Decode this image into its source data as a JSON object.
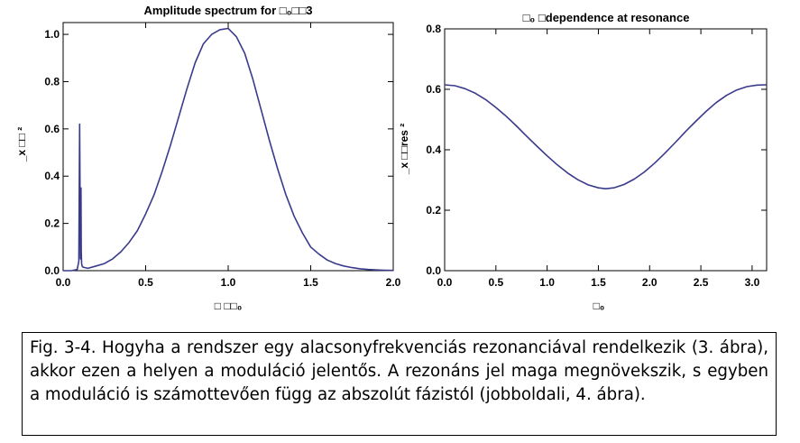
{
  "chart_data": [
    {
      "type": "line",
      "title": "Amplitude spectrum for □₀□□3",
      "xlabel": "□ □□₀",
      "ylabel": "_x □□ ²",
      "xlim": [
        0.0,
        2.0
      ],
      "ylim": [
        0.0,
        1.05
      ],
      "xticks": [
        "0.0",
        "0.5",
        "1.0",
        "1.5",
        "2.0"
      ],
      "yticks": [
        "0.0",
        "0.2",
        "0.4",
        "0.6",
        "0.8",
        "1.0"
      ],
      "series": [
        {
          "color": "#3a3a8c",
          "x": [
            0.0,
            0.05,
            0.085,
            0.095,
            0.1,
            0.105,
            0.108,
            0.11,
            0.112,
            0.115,
            0.12,
            0.15,
            0.2,
            0.25,
            0.3,
            0.35,
            0.4,
            0.45,
            0.5,
            0.55,
            0.6,
            0.65,
            0.7,
            0.75,
            0.8,
            0.85,
            0.9,
            0.95,
            1.0,
            1.05,
            1.1,
            1.15,
            1.2,
            1.25,
            1.3,
            1.35,
            1.4,
            1.45,
            1.5,
            1.55,
            1.6,
            1.65,
            1.7,
            1.75,
            1.8,
            1.85,
            1.9,
            1.95,
            2.0
          ],
          "y": [
            0.0,
            0.0,
            0.005,
            0.04,
            0.62,
            0.05,
            0.35,
            0.08,
            0.03,
            0.02,
            0.015,
            0.01,
            0.02,
            0.03,
            0.05,
            0.08,
            0.12,
            0.17,
            0.24,
            0.32,
            0.42,
            0.53,
            0.65,
            0.77,
            0.88,
            0.96,
            1.0,
            1.02,
            1.025,
            0.99,
            0.92,
            0.81,
            0.68,
            0.55,
            0.43,
            0.32,
            0.23,
            0.16,
            0.1,
            0.07,
            0.045,
            0.03,
            0.02,
            0.013,
            0.008,
            0.005,
            0.003,
            0.002,
            0.001
          ]
        }
      ]
    },
    {
      "type": "line",
      "title": "□₀ □dependence at resonance",
      "xlabel": "□₀",
      "ylabel": "_x □□res ²",
      "xlim": [
        0.0,
        3.14159
      ],
      "ylim": [
        0.0,
        0.8
      ],
      "xticks": [
        "0.0",
        "0.5",
        "1.0",
        "1.5",
        "2.0",
        "2.5",
        "3.0"
      ],
      "yticks": [
        "0.0",
        "0.2",
        "0.4",
        "0.6",
        "0.8"
      ],
      "series": [
        {
          "color": "#3a3a8c",
          "x": [
            0.0,
            0.1,
            0.2,
            0.3,
            0.4,
            0.5,
            0.6,
            0.7,
            0.8,
            0.9,
            1.0,
            1.1,
            1.2,
            1.3,
            1.4,
            1.5,
            1.5708,
            1.65,
            1.75,
            1.85,
            1.95,
            2.05,
            2.15,
            2.25,
            2.35,
            2.45,
            2.55,
            2.65,
            2.75,
            2.85,
            2.95,
            3.05,
            3.14
          ],
          "y": [
            0.615,
            0.612,
            0.602,
            0.587,
            0.566,
            0.54,
            0.511,
            0.479,
            0.445,
            0.412,
            0.38,
            0.35,
            0.323,
            0.301,
            0.284,
            0.274,
            0.271,
            0.274,
            0.285,
            0.303,
            0.327,
            0.356,
            0.389,
            0.424,
            0.46,
            0.494,
            0.527,
            0.556,
            0.58,
            0.598,
            0.609,
            0.614,
            0.615
          ]
        }
      ]
    }
  ],
  "caption": "Fig. 3-4. Hogyha a rendszer egy alacsonyfrekvenciás rezonanciával rendelkezik (3. ábra), akkor ezen a helyen a moduláció jelentős. A rezonáns jel maga megnövekszik, s egyben a moduláció is számottevően függ az abszolút fázistól (jobboldali, 4. ábra)."
}
